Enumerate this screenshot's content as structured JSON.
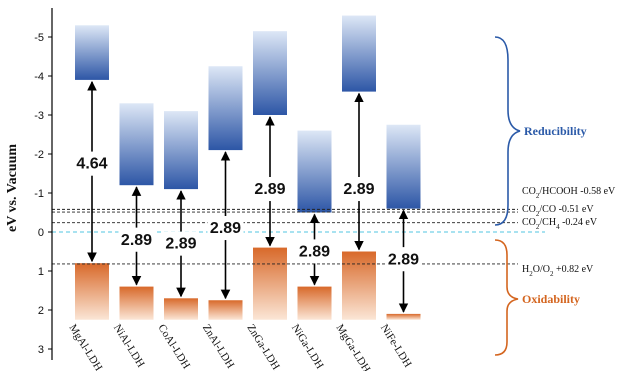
{
  "chart_data": {
    "type": "band-diagram",
    "y_axis_label": "eV vs. Vacuum",
    "y_range": [
      -5.6,
      3.3
    ],
    "y_inverted": true,
    "y_ticks": [
      -5,
      -4,
      -3,
      -2,
      -1,
      0,
      1,
      2,
      3
    ],
    "categories": [
      "MgAl-LDH",
      "NiAl-LDH",
      "CoAl-LDH",
      "ZnAl-LDH",
      "ZnGa-LDH",
      "NiGa-LDH",
      "MgGa-LDH",
      "NiFe-LDH"
    ],
    "conduction_band_bottom": [
      -3.9,
      -1.2,
      -1.1,
      -2.1,
      -3.0,
      -0.5,
      -3.6,
      -0.6
    ],
    "conduction_band_top": [
      -5.3,
      -3.3,
      -3.1,
      -4.25,
      -5.15,
      -2.6,
      -5.55,
      -2.75
    ],
    "valence_band_top": [
      0.8,
      1.4,
      1.7,
      1.75,
      0.4,
      1.4,
      0.5,
      2.1
    ],
    "band_gaps": [
      "4.64",
      "2.89",
      "2.89",
      "2.89",
      "2.89",
      "2.89",
      "2.89",
      "2.89"
    ],
    "gap_label_y": [
      -1.7,
      0.25,
      0.35,
      -0.05,
      -1.05,
      0.55,
      -1.05,
      0.75
    ],
    "reference_levels": [
      {
        "label_pre": "CO",
        "label_sub1": "2",
        "label_mid": "/HCOOH",
        "label_sub2": "",
        "label_post": " -0.58 eV",
        "value": -0.58
      },
      {
        "label_pre": "CO",
        "label_sub1": "2",
        "label_mid": "/CO",
        "label_sub2": "",
        "label_post": "  -0.51 eV",
        "value": -0.51
      },
      {
        "label_pre": "CO",
        "label_sub1": "2",
        "label_mid": "/CH",
        "label_sub2": "4",
        "label_post": " -0.24 eV",
        "value": -0.24
      },
      {
        "label_pre": "H",
        "label_sub1": "2",
        "label_mid": "O/O",
        "label_sub2": "2",
        "label_post": " +0.82 eV",
        "value": 0.82
      }
    ],
    "zero_line_value": 0,
    "annotations": {
      "reducibility": "Reducibility",
      "oxidability": "Oxidability"
    },
    "colors": {
      "cb_dark": "#2d56a6",
      "cb_light": "#dde7f6",
      "vb_dark": "#d8692a",
      "vb_light": "#fbe6d6",
      "reducibility": "#2b5aa8",
      "oxidability": "#d4651f",
      "zero_line": "#52c6e0"
    }
  }
}
